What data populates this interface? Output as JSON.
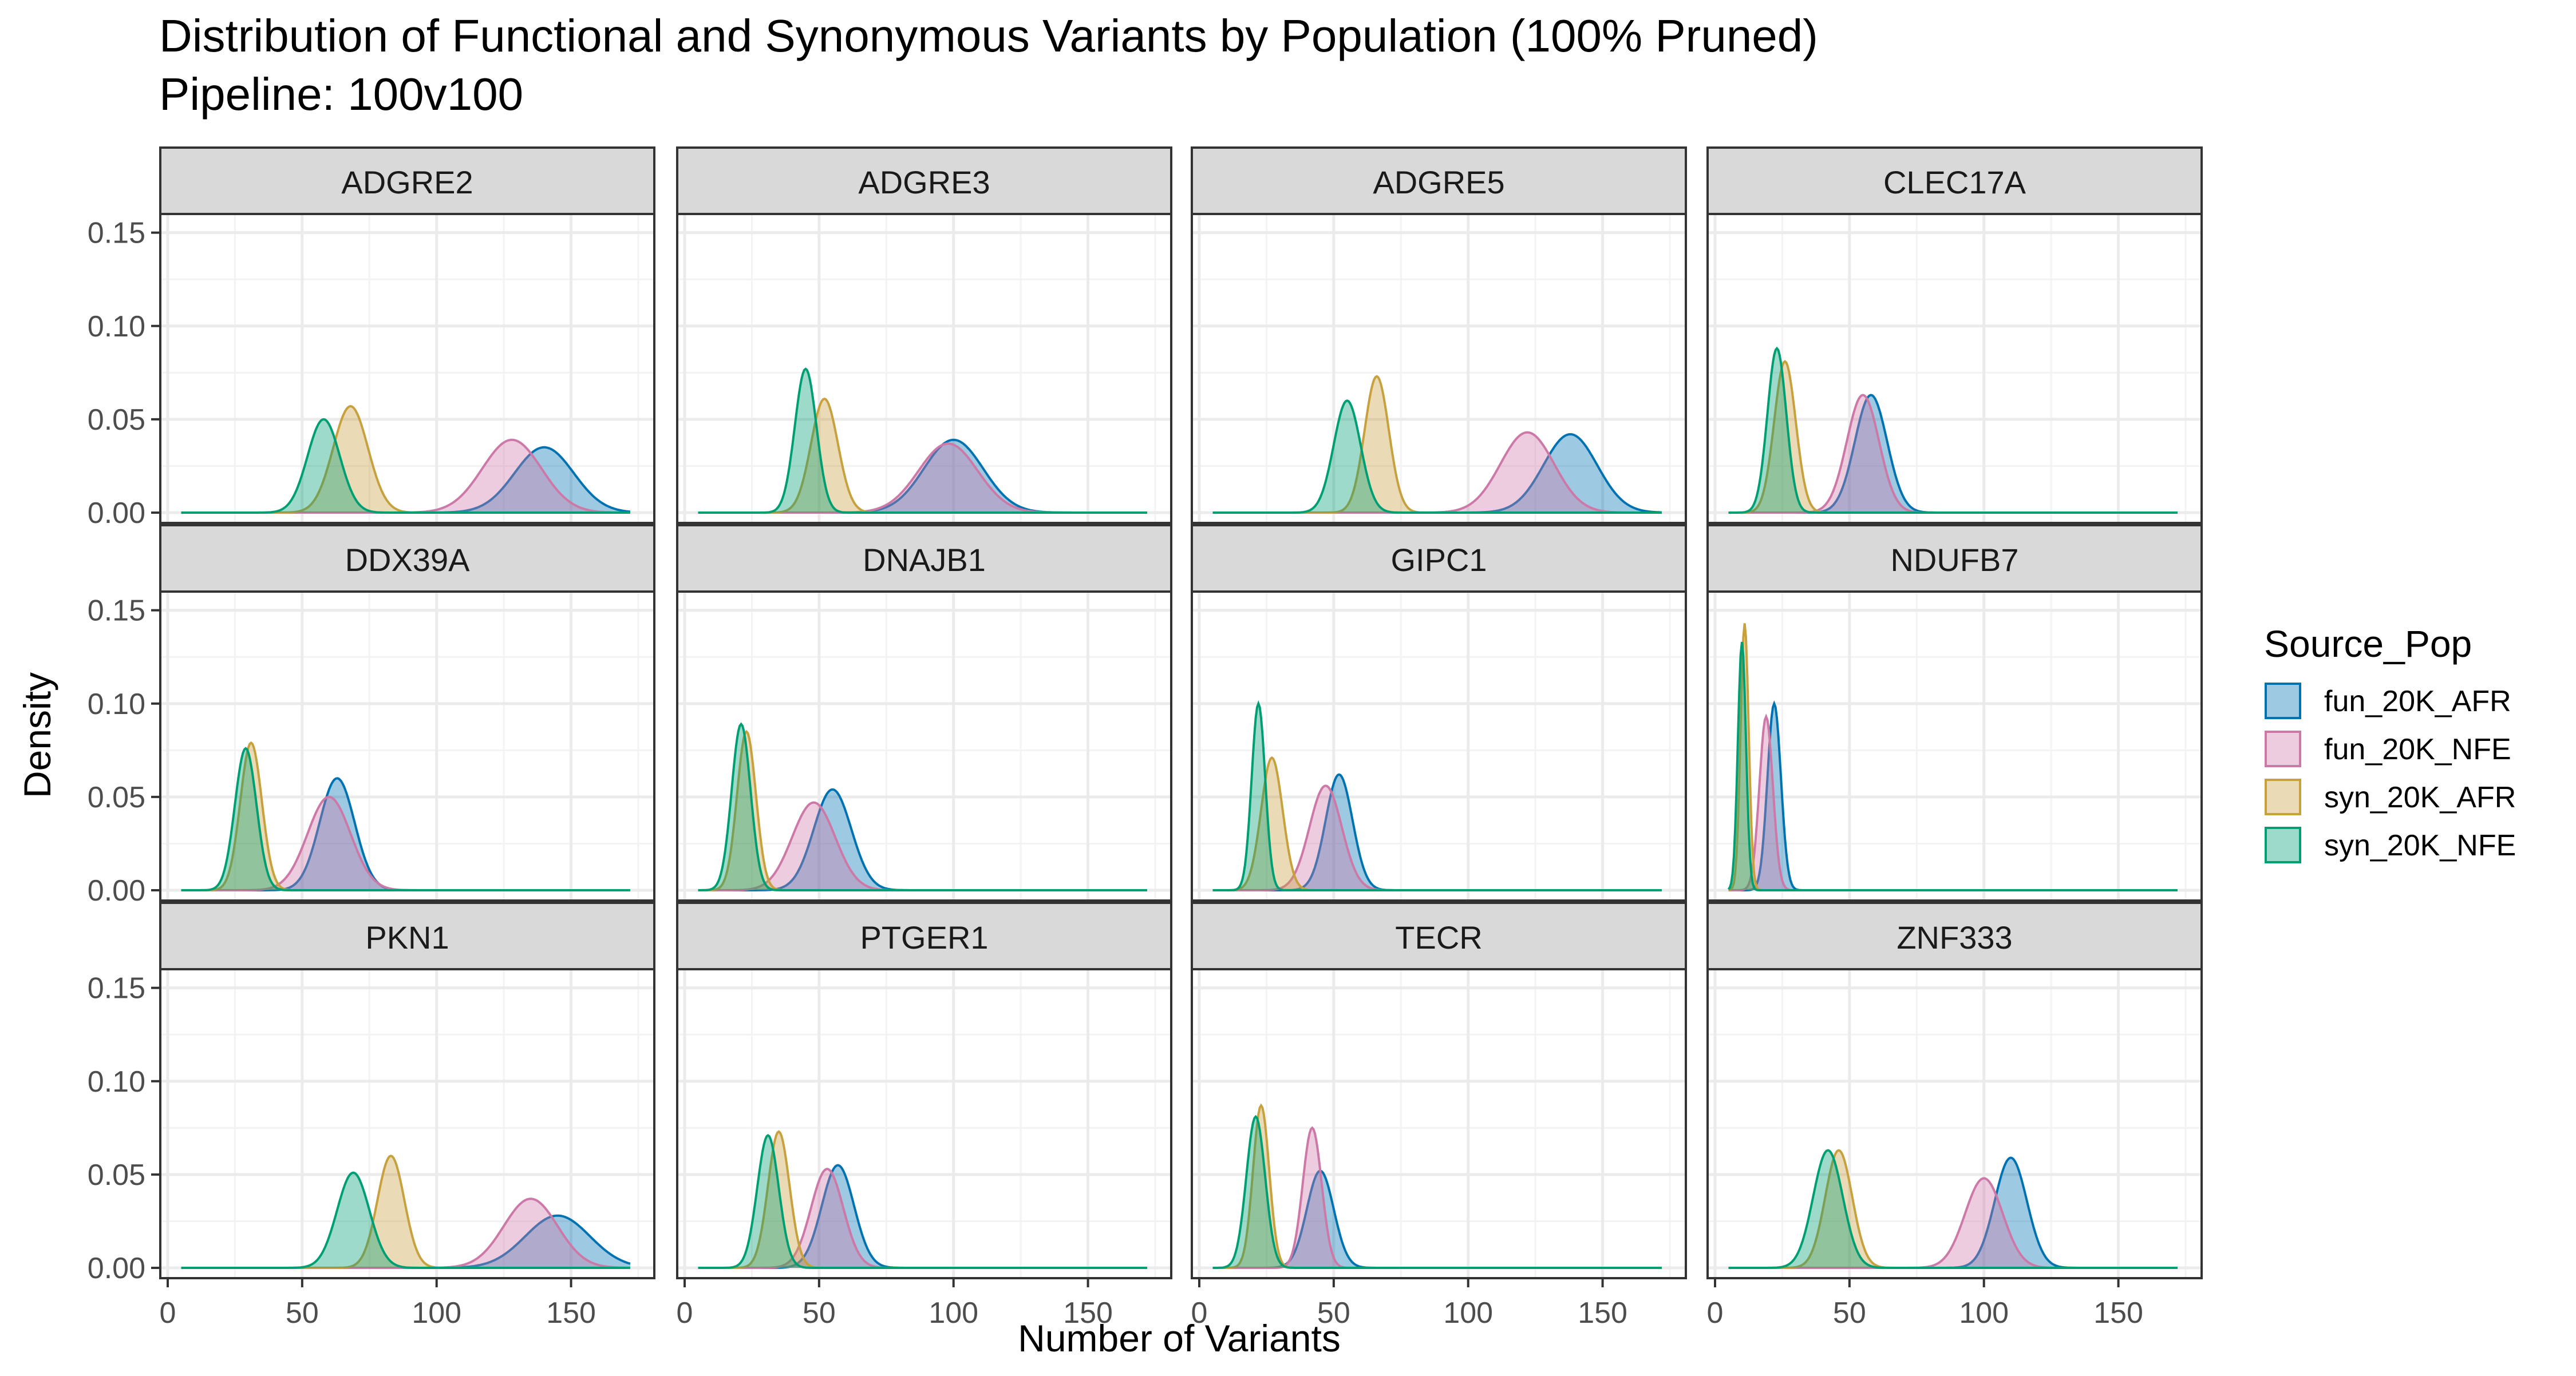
{
  "chart_data": {
    "type": "area",
    "title": "Distribution of Functional and Synonymous Variants by Population (100% Pruned)",
    "subtitle": "Pipeline: 100v100",
    "xlabel": "Number of Variants",
    "ylabel": "Density",
    "xlim": [
      0,
      175
    ],
    "ylim": [
      0,
      0.16
    ],
    "x_ticks": [
      "0",
      "50",
      "100",
      "150"
    ],
    "y_ticks": [
      "0.00",
      "0.05",
      "0.10",
      "0.15"
    ],
    "grid": true,
    "legend": {
      "title": "Source_Pop",
      "position": "right",
      "entries": [
        {
          "name": "fun_20K_AFR",
          "color": "#0072B2"
        },
        {
          "name": "fun_20K_NFE",
          "color": "#CC79A7"
        },
        {
          "name": "syn_20K_AFR",
          "color": "#C8A13F"
        },
        {
          "name": "syn_20K_NFE",
          "color": "#009E73"
        }
      ]
    },
    "facets": [
      {
        "name": "ADGRE2",
        "series": [
          {
            "name": "fun_20K_AFR",
            "peaks": [
              [
                140,
                0.035,
                11
              ]
            ]
          },
          {
            "name": "fun_20K_NFE",
            "peaks": [
              [
                128,
                0.039,
                11
              ]
            ]
          },
          {
            "name": "syn_20K_AFR",
            "peaks": [
              [
                68,
                0.057,
                6.5
              ]
            ]
          },
          {
            "name": "syn_20K_NFE",
            "peaks": [
              [
                58,
                0.05,
                6
              ]
            ]
          }
        ]
      },
      {
        "name": "ADGRE3",
        "series": [
          {
            "name": "fun_20K_AFR",
            "peaks": [
              [
                100,
                0.039,
                11
              ]
            ]
          },
          {
            "name": "fun_20K_NFE",
            "peaks": [
              [
                98,
                0.037,
                11
              ]
            ]
          },
          {
            "name": "syn_20K_AFR",
            "peaks": [
              [
                52,
                0.061,
                5
              ]
            ]
          },
          {
            "name": "syn_20K_NFE",
            "peaks": [
              [
                45,
                0.077,
                4
              ]
            ]
          }
        ]
      },
      {
        "name": "ADGRE5",
        "series": [
          {
            "name": "fun_20K_AFR",
            "peaks": [
              [
                138,
                0.042,
                10
              ]
            ]
          },
          {
            "name": "fun_20K_NFE",
            "peaks": [
              [
                122,
                0.043,
                10
              ]
            ]
          },
          {
            "name": "syn_20K_AFR",
            "peaks": [
              [
                66,
                0.073,
                4.5
              ]
            ]
          },
          {
            "name": "syn_20K_NFE",
            "peaks": [
              [
                55,
                0.06,
                5
              ]
            ]
          }
        ]
      },
      {
        "name": "CLEC17A",
        "series": [
          {
            "name": "fun_20K_AFR",
            "peaks": [
              [
                58,
                0.063,
                6
              ]
            ]
          },
          {
            "name": "fun_20K_NFE",
            "peaks": [
              [
                55,
                0.063,
                6
              ]
            ]
          },
          {
            "name": "syn_20K_AFR",
            "peaks": [
              [
                26,
                0.081,
                4
              ]
            ]
          },
          {
            "name": "syn_20K_NFE",
            "peaks": [
              [
                23,
                0.088,
                3.5
              ]
            ]
          }
        ]
      },
      {
        "name": "DDX39A",
        "series": [
          {
            "name": "fun_20K_AFR",
            "peaks": [
              [
                63,
                0.06,
                6.5
              ]
            ]
          },
          {
            "name": "fun_20K_NFE",
            "peaks": [
              [
                60,
                0.05,
                8
              ]
            ]
          },
          {
            "name": "syn_20K_AFR",
            "peaks": [
              [
                31,
                0.079,
                4
              ]
            ]
          },
          {
            "name": "syn_20K_NFE",
            "peaks": [
              [
                29,
                0.076,
                4
              ]
            ]
          }
        ]
      },
      {
        "name": "DNAJB1",
        "series": [
          {
            "name": "fun_20K_AFR",
            "peaks": [
              [
                55,
                0.054,
                7
              ]
            ]
          },
          {
            "name": "fun_20K_NFE",
            "peaks": [
              [
                48,
                0.047,
                8
              ]
            ]
          },
          {
            "name": "syn_20K_AFR",
            "peaks": [
              [
                23,
                0.085,
                3.5
              ]
            ]
          },
          {
            "name": "syn_20K_NFE",
            "peaks": [
              [
                21,
                0.089,
                3.5
              ]
            ]
          }
        ]
      },
      {
        "name": "GIPC1",
        "series": [
          {
            "name": "fun_20K_AFR",
            "peaks": [
              [
                52,
                0.062,
                5
              ]
            ]
          },
          {
            "name": "fun_20K_NFE",
            "peaks": [
              [
                47,
                0.056,
                6
              ]
            ]
          },
          {
            "name": "syn_20K_AFR",
            "peaks": [
              [
                27,
                0.071,
                4
              ]
            ]
          },
          {
            "name": "syn_20K_NFE",
            "peaks": [
              [
                22,
                0.1,
                2.5
              ]
            ]
          }
        ]
      },
      {
        "name": "NDUFB7",
        "series": [
          {
            "name": "fun_20K_AFR",
            "peaks": [
              [
                22,
                0.1,
                2.5
              ]
            ]
          },
          {
            "name": "fun_20K_NFE",
            "peaks": [
              [
                19,
                0.093,
                2.5
              ]
            ]
          },
          {
            "name": "syn_20K_AFR",
            "peaks": [
              [
                11,
                0.143,
                1.5
              ]
            ]
          },
          {
            "name": "syn_20K_NFE",
            "peaks": [
              [
                10,
                0.133,
                1.5
              ]
            ]
          }
        ]
      },
      {
        "name": "PKN1",
        "series": [
          {
            "name": "fun_20K_AFR",
            "peaks": [
              [
                145,
                0.028,
                12
              ]
            ]
          },
          {
            "name": "fun_20K_NFE",
            "peaks": [
              [
                135,
                0.037,
                10
              ]
            ]
          },
          {
            "name": "syn_20K_AFR",
            "peaks": [
              [
                83,
                0.06,
                5
              ]
            ]
          },
          {
            "name": "syn_20K_NFE",
            "peaks": [
              [
                69,
                0.051,
                6
              ]
            ]
          }
        ]
      },
      {
        "name": "PTGER1",
        "series": [
          {
            "name": "fun_20K_AFR",
            "peaks": [
              [
                57,
                0.055,
                6
              ]
            ]
          },
          {
            "name": "fun_20K_NFE",
            "peaks": [
              [
                53,
                0.053,
                6
              ]
            ]
          },
          {
            "name": "syn_20K_AFR",
            "peaks": [
              [
                35,
                0.073,
                4
              ]
            ]
          },
          {
            "name": "syn_20K_NFE",
            "peaks": [
              [
                31,
                0.071,
                4
              ]
            ]
          }
        ]
      },
      {
        "name": "TECR",
        "series": [
          {
            "name": "fun_20K_AFR",
            "peaks": [
              [
                45,
                0.052,
                5
              ]
            ]
          },
          {
            "name": "fun_20K_NFE",
            "peaks": [
              [
                42,
                0.075,
                3.5
              ]
            ]
          },
          {
            "name": "syn_20K_AFR",
            "peaks": [
              [
                23,
                0.087,
                3
              ]
            ]
          },
          {
            "name": "syn_20K_NFE",
            "peaks": [
              [
                21,
                0.081,
                3.5
              ]
            ]
          }
        ]
      },
      {
        "name": "ZNF333",
        "series": [
          {
            "name": "fun_20K_AFR",
            "peaks": [
              [
                110,
                0.059,
                6
              ]
            ]
          },
          {
            "name": "fun_20K_NFE",
            "peaks": [
              [
                100,
                0.048,
                7
              ]
            ]
          },
          {
            "name": "syn_20K_AFR",
            "peaks": [
              [
                46,
                0.063,
                5
              ]
            ]
          },
          {
            "name": "syn_20K_NFE",
            "peaks": [
              [
                42,
                0.063,
                5.5
              ]
            ]
          }
        ]
      }
    ]
  }
}
